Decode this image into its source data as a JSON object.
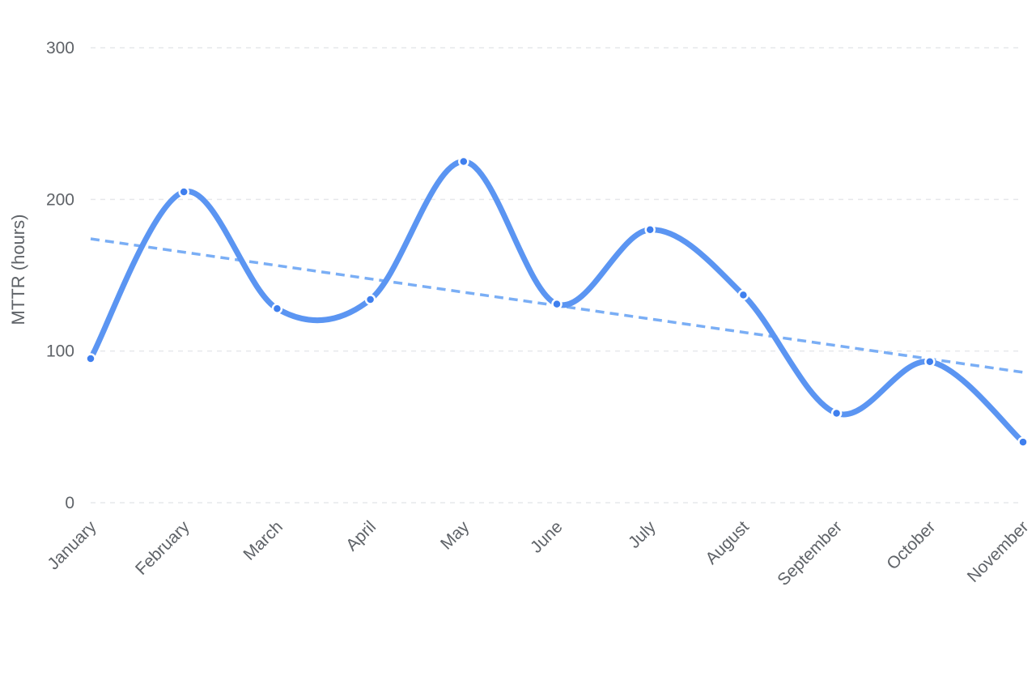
{
  "chart_data": {
    "type": "line",
    "title": "",
    "xlabel": "",
    "ylabel": "MTTR (hours)",
    "ylim": [
      0,
      300
    ],
    "yticks": [
      0,
      100,
      200,
      300
    ],
    "grid": true,
    "categories": [
      "January",
      "February",
      "March",
      "April",
      "May",
      "June",
      "July",
      "August",
      "September",
      "October",
      "November"
    ],
    "series": [
      {
        "values": [
          95,
          205,
          128,
          134,
          225,
          131,
          180,
          137,
          59,
          93,
          40
        ],
        "color": "#5b95f2",
        "smooth": true
      }
    ],
    "trendline": {
      "start": 174,
      "end": 86,
      "color": "#7aaef5",
      "style": "dashed"
    }
  }
}
